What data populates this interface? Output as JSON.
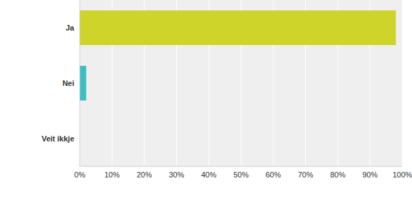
{
  "chart_data": {
    "type": "bar",
    "orientation": "horizontal",
    "categories": [
      "Ja",
      "Nei",
      "Veit ikkje"
    ],
    "values": [
      98,
      2,
      0
    ],
    "colors": [
      "#cfd42a",
      "#3dbdc2",
      "#3dbdc2"
    ],
    "xlim": [
      0,
      100
    ],
    "xticks": [
      {
        "value": 0,
        "label": "0%"
      },
      {
        "value": 10,
        "label": "10%"
      },
      {
        "value": 20,
        "label": "20%"
      },
      {
        "value": 30,
        "label": "30%"
      },
      {
        "value": 40,
        "label": "40%"
      },
      {
        "value": 50,
        "label": "50%"
      },
      {
        "value": 60,
        "label": "60%"
      },
      {
        "value": 70,
        "label": "70%"
      },
      {
        "value": 80,
        "label": "80%"
      },
      {
        "value": 90,
        "label": "90%"
      },
      {
        "value": 100,
        "label": "100%"
      }
    ],
    "grid": true
  }
}
